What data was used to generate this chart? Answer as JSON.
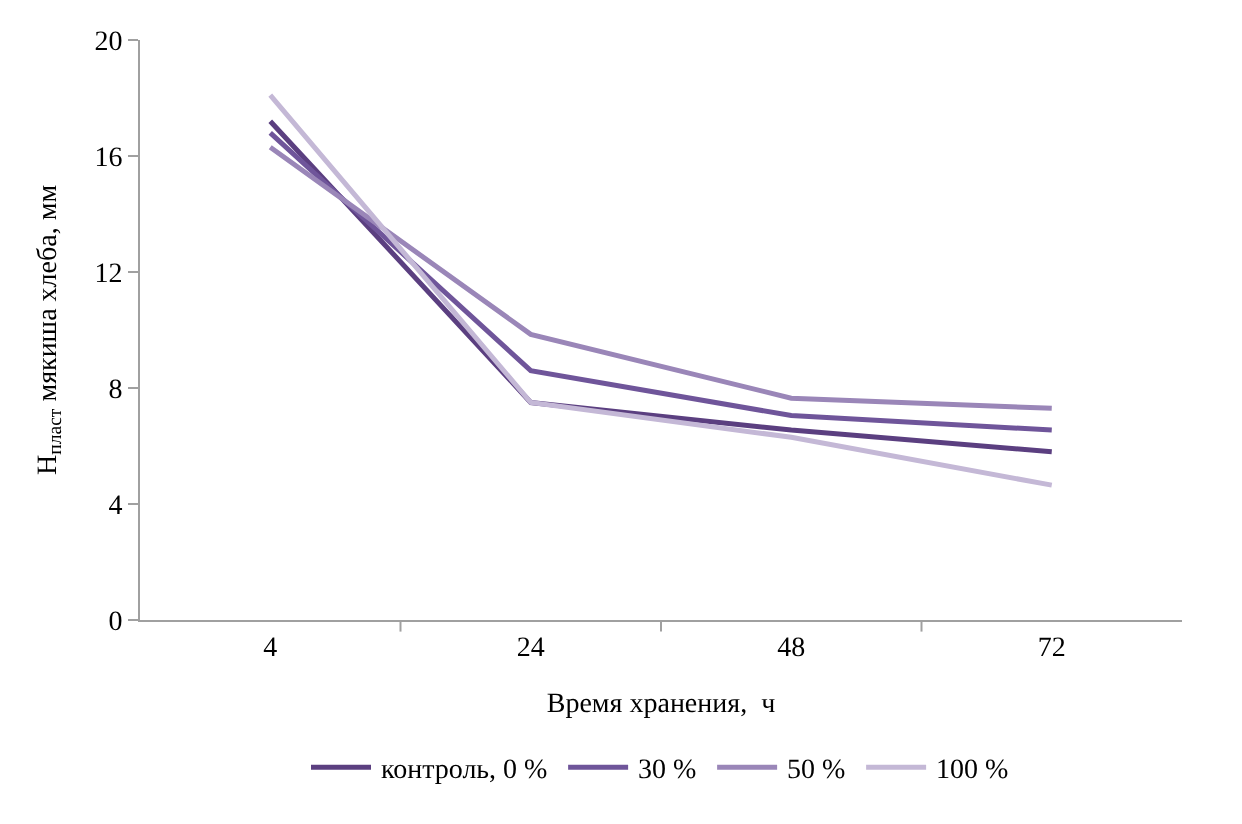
{
  "chart_data": {
    "type": "line",
    "xlabel": "Время хранения,  ч",
    "ylabel": "Н$_{пласт}$ мякиша хлеба, мм",
    "categories": [
      "4",
      "24",
      "48",
      "72"
    ],
    "ylim": [
      0,
      20
    ],
    "yticks": [
      0,
      4,
      8,
      12,
      16,
      20
    ],
    "legend": "bottom",
    "marker": "none",
    "line_style": "solid",
    "series": [
      {
        "name": "контроль, 0 %",
        "color": "#5b3f80",
        "values": [
          17.2,
          7.5,
          6.55,
          5.8
        ]
      },
      {
        "name": "30 %",
        "color": "#6f559a",
        "values": [
          16.8,
          8.6,
          7.05,
          6.55
        ]
      },
      {
        "name": "50 %",
        "color": "#9a86b8",
        "values": [
          16.3,
          9.85,
          7.65,
          7.3
        ]
      },
      {
        "name": "100 %",
        "color": "#c4b8d6",
        "values": [
          18.1,
          7.5,
          6.3,
          4.65
        ]
      }
    ]
  }
}
